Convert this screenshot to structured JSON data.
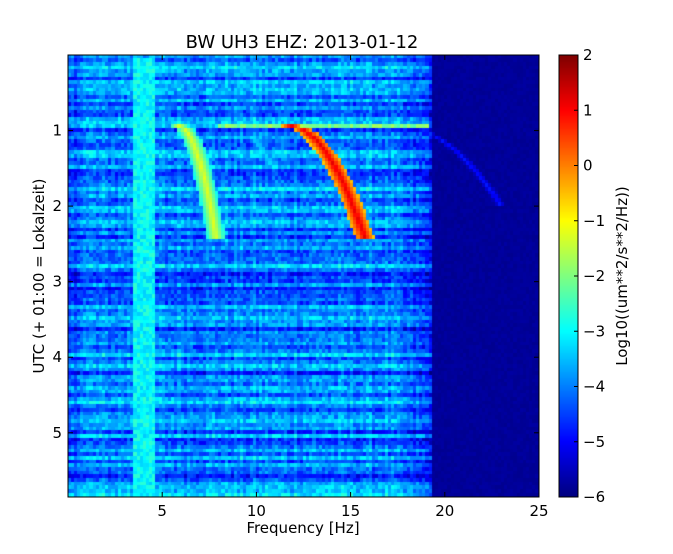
{
  "chart_data": {
    "type": "heatmap",
    "title": "BW UH3 EHZ: 2013-01-12",
    "xlabel": "Frequency [Hz]",
    "ylabel": "UTC (+ 01:00 = Lokalzeit)",
    "xlim": [
      0,
      25
    ],
    "ylim": [
      5.85,
      0
    ],
    "xticks": [
      5,
      10,
      15,
      20,
      25
    ],
    "xtick_labels": [
      "5",
      "10",
      "15",
      "20",
      "25"
    ],
    "yticks": [
      1,
      2,
      3,
      4,
      5
    ],
    "ytick_labels": [
      "1",
      "2",
      "3",
      "4",
      "5"
    ],
    "colormap": "jet",
    "colorbar": {
      "label": "Log10((um**2/s**2/Hz))",
      "range": [
        -6,
        2
      ],
      "ticks": [
        2,
        1,
        0,
        -1,
        -2,
        -3,
        -4,
        -5,
        -6
      ],
      "tick_labels": [
        "2",
        "1",
        "0",
        "−1",
        "−2",
        "−3",
        "−4",
        "−5",
        "−6"
      ]
    },
    "background_level": -4,
    "high_freq_floor_level": -5.8,
    "features": [
      {
        "kind": "chirp",
        "start_time": 0.95,
        "end_time": 2.45,
        "start_freq": 5.9,
        "end_freq": 7.9,
        "level": -1.2
      },
      {
        "kind": "chirp",
        "start_time": 0.95,
        "end_time": 2.45,
        "start_freq": 11.8,
        "end_freq": 15.8,
        "level": 1.2
      },
      {
        "kind": "chirp",
        "start_time": 0.95,
        "end_time": 2.0,
        "start_freq": 17.6,
        "end_freq": 23.0,
        "level": -4.8
      },
      {
        "kind": "chirp",
        "start_time": 1.05,
        "end_time": 1.45,
        "start_freq": 9.2,
        "end_freq": 10.8,
        "level": -3.2
      },
      {
        "kind": "band",
        "start_time": 0.92,
        "end_time": 0.97,
        "freq_from": 8.0,
        "freq_to": 19.2,
        "level": -2.0
      },
      {
        "kind": "band",
        "start_time": 0.05,
        "end_time": 5.85,
        "freq_from": 3.5,
        "freq_to": 4.6,
        "level": -3.0
      }
    ]
  }
}
